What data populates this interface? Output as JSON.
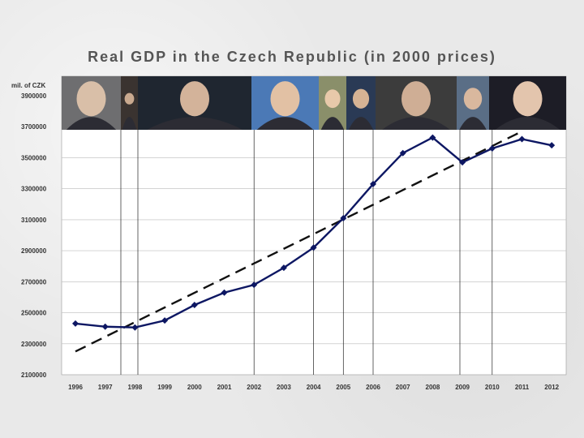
{
  "chart_data": {
    "type": "line",
    "title": "Real GDP in the Czech Republic (in 2000 prices)",
    "ylabel": "mil. of CZK",
    "xlabel": "",
    "ylim": [
      2100000,
      3900000
    ],
    "yticks": [
      "2100000",
      "2300000",
      "2500000",
      "2700000",
      "2900000",
      "3100000",
      "3300000",
      "3500000",
      "3700000",
      "3900000"
    ],
    "categories": [
      "1996",
      "1997",
      "1998",
      "1999",
      "2000",
      "2001",
      "2002",
      "2003",
      "2004",
      "2005",
      "2006",
      "2007",
      "2008",
      "2009",
      "2010",
      "2011",
      "2012"
    ],
    "series": [
      {
        "values": [
          2430000,
          2410000,
          2405000,
          2450000,
          2550000,
          2630000,
          2680000,
          2790000,
          2920000,
          3110000,
          3330000,
          3530000,
          3630000,
          3470000,
          3560000,
          3620000,
          3580000
        ],
        "color": "#0d1763"
      }
    ],
    "trend": {
      "from": [
        1996,
        2250000
      ],
      "to": [
        2011,
        3670000
      ],
      "style": "dashed",
      "color": "#111111"
    },
    "vertical_markers": [
      "1997",
      "1998",
      "2002",
      "2004",
      "2005",
      "2006",
      "2009",
      "2010"
    ],
    "grid": "horizontal",
    "photos": [
      "portrait-1",
      "portrait-2",
      "portrait-3",
      "portrait-4",
      "portrait-5",
      "portrait-6",
      "portrait-7",
      "portrait-8",
      "portrait-9"
    ]
  }
}
